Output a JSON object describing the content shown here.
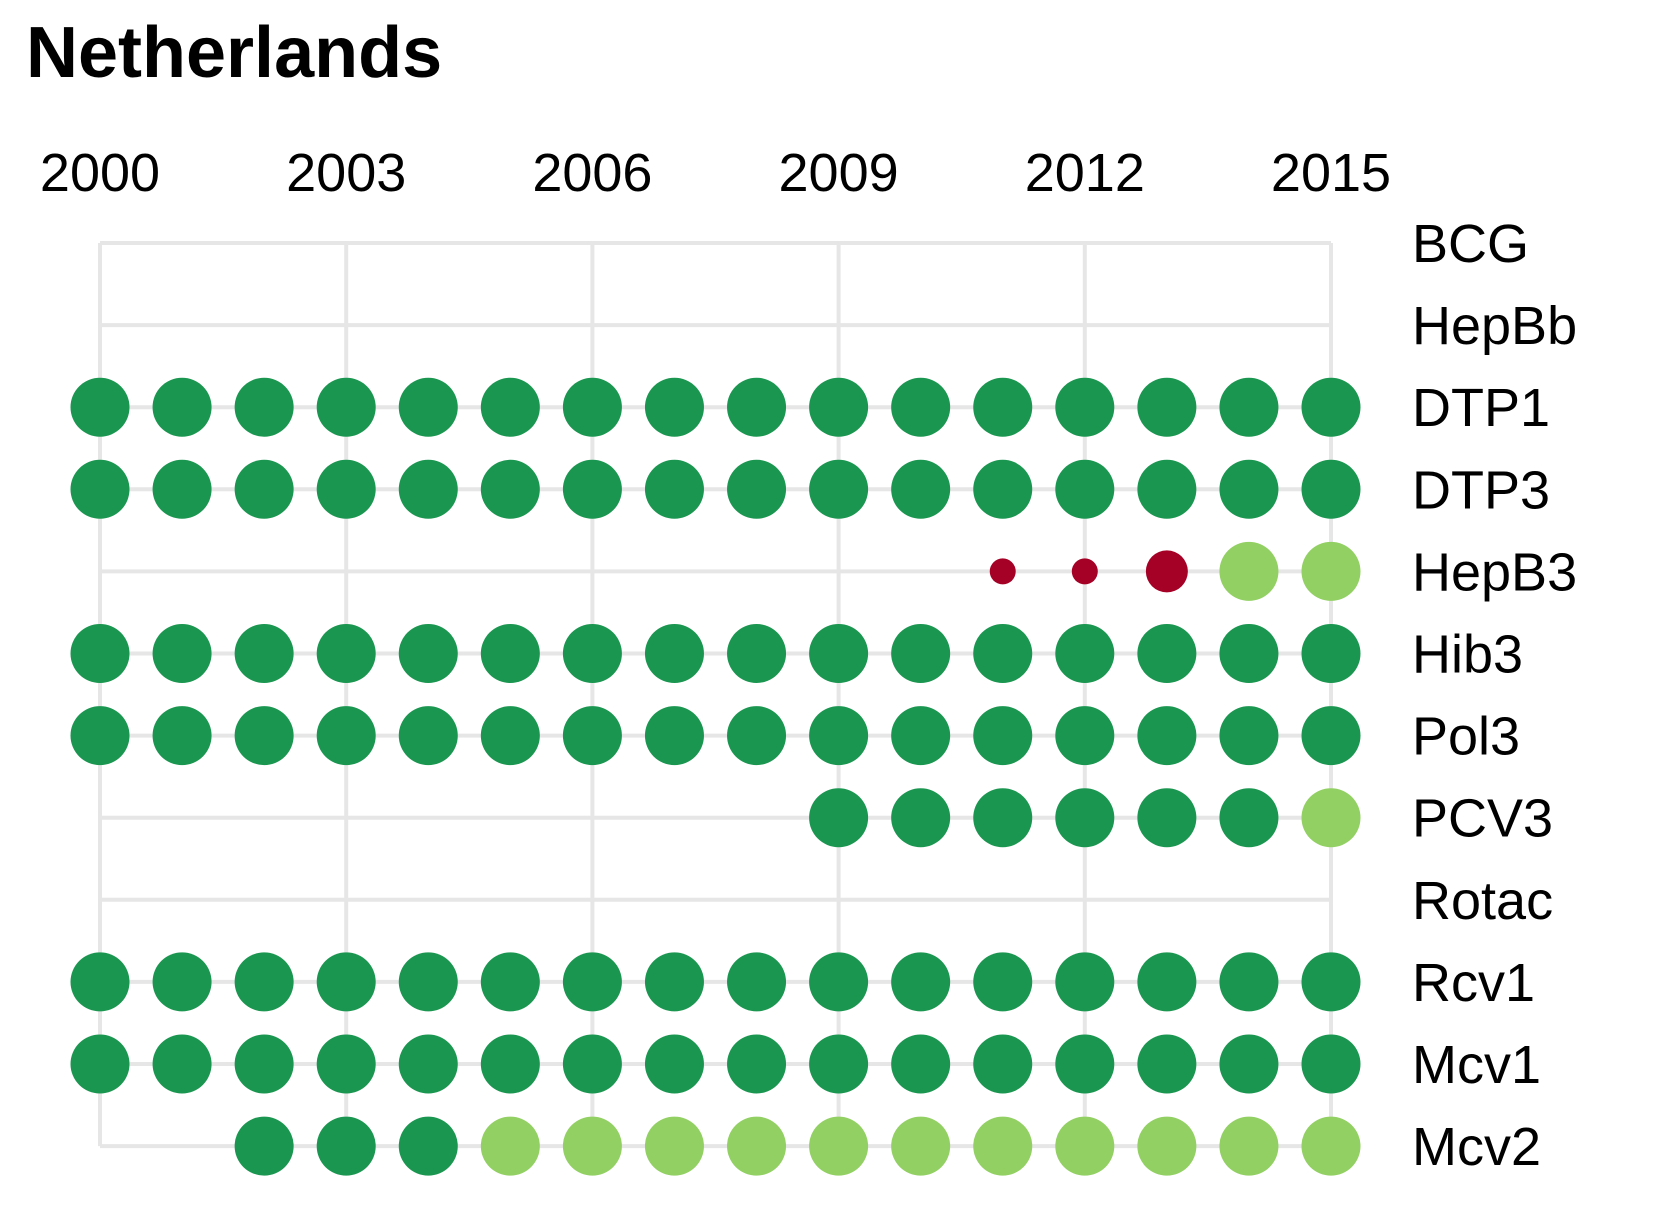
{
  "chart_data": {
    "type": "scatter",
    "title": "Netherlands",
    "xlabel": "",
    "ylabel": "",
    "x_ticks": [
      "2000",
      "2003",
      "2006",
      "2009",
      "2012",
      "2015"
    ],
    "x_range": [
      2000,
      2015
    ],
    "grid": true,
    "colors": {
      "dark_green": "#1b9650",
      "light_green": "#92d063",
      "red": "#a50026",
      "grid": "#e6e6e6"
    },
    "rows": [
      {
        "label": "BCG",
        "points": []
      },
      {
        "label": "HepBb",
        "points": []
      },
      {
        "label": "DTP1",
        "points": [
          {
            "year": 2000,
            "category": "dark_green",
            "size": "large"
          },
          {
            "year": 2001,
            "category": "dark_green",
            "size": "large"
          },
          {
            "year": 2002,
            "category": "dark_green",
            "size": "large"
          },
          {
            "year": 2003,
            "category": "dark_green",
            "size": "large"
          },
          {
            "year": 2004,
            "category": "dark_green",
            "size": "large"
          },
          {
            "year": 2005,
            "category": "dark_green",
            "size": "large"
          },
          {
            "year": 2006,
            "category": "dark_green",
            "size": "large"
          },
          {
            "year": 2007,
            "category": "dark_green",
            "size": "large"
          },
          {
            "year": 2008,
            "category": "dark_green",
            "size": "large"
          },
          {
            "year": 2009,
            "category": "dark_green",
            "size": "large"
          },
          {
            "year": 2010,
            "category": "dark_green",
            "size": "large"
          },
          {
            "year": 2011,
            "category": "dark_green",
            "size": "large"
          },
          {
            "year": 2012,
            "category": "dark_green",
            "size": "large"
          },
          {
            "year": 2013,
            "category": "dark_green",
            "size": "large"
          },
          {
            "year": 2014,
            "category": "dark_green",
            "size": "large"
          },
          {
            "year": 2015,
            "category": "dark_green",
            "size": "large"
          }
        ]
      },
      {
        "label": "DTP3",
        "points": [
          {
            "year": 2000,
            "category": "dark_green",
            "size": "large"
          },
          {
            "year": 2001,
            "category": "dark_green",
            "size": "large"
          },
          {
            "year": 2002,
            "category": "dark_green",
            "size": "large"
          },
          {
            "year": 2003,
            "category": "dark_green",
            "size": "large"
          },
          {
            "year": 2004,
            "category": "dark_green",
            "size": "large"
          },
          {
            "year": 2005,
            "category": "dark_green",
            "size": "large"
          },
          {
            "year": 2006,
            "category": "dark_green",
            "size": "large"
          },
          {
            "year": 2007,
            "category": "dark_green",
            "size": "large"
          },
          {
            "year": 2008,
            "category": "dark_green",
            "size": "large"
          },
          {
            "year": 2009,
            "category": "dark_green",
            "size": "large"
          },
          {
            "year": 2010,
            "category": "dark_green",
            "size": "large"
          },
          {
            "year": 2011,
            "category": "dark_green",
            "size": "large"
          },
          {
            "year": 2012,
            "category": "dark_green",
            "size": "large"
          },
          {
            "year": 2013,
            "category": "dark_green",
            "size": "large"
          },
          {
            "year": 2014,
            "category": "dark_green",
            "size": "large"
          },
          {
            "year": 2015,
            "category": "dark_green",
            "size": "large"
          }
        ]
      },
      {
        "label": "HepB3",
        "points": [
          {
            "year": 2011,
            "category": "red",
            "size": "small"
          },
          {
            "year": 2012,
            "category": "red",
            "size": "small"
          },
          {
            "year": 2013,
            "category": "red",
            "size": "medium"
          },
          {
            "year": 2014,
            "category": "light_green",
            "size": "large"
          },
          {
            "year": 2015,
            "category": "light_green",
            "size": "large"
          }
        ]
      },
      {
        "label": "Hib3",
        "points": [
          {
            "year": 2000,
            "category": "dark_green",
            "size": "large"
          },
          {
            "year": 2001,
            "category": "dark_green",
            "size": "large"
          },
          {
            "year": 2002,
            "category": "dark_green",
            "size": "large"
          },
          {
            "year": 2003,
            "category": "dark_green",
            "size": "large"
          },
          {
            "year": 2004,
            "category": "dark_green",
            "size": "large"
          },
          {
            "year": 2005,
            "category": "dark_green",
            "size": "large"
          },
          {
            "year": 2006,
            "category": "dark_green",
            "size": "large"
          },
          {
            "year": 2007,
            "category": "dark_green",
            "size": "large"
          },
          {
            "year": 2008,
            "category": "dark_green",
            "size": "large"
          },
          {
            "year": 2009,
            "category": "dark_green",
            "size": "large"
          },
          {
            "year": 2010,
            "category": "dark_green",
            "size": "large"
          },
          {
            "year": 2011,
            "category": "dark_green",
            "size": "large"
          },
          {
            "year": 2012,
            "category": "dark_green",
            "size": "large"
          },
          {
            "year": 2013,
            "category": "dark_green",
            "size": "large"
          },
          {
            "year": 2014,
            "category": "dark_green",
            "size": "large"
          },
          {
            "year": 2015,
            "category": "dark_green",
            "size": "large"
          }
        ]
      },
      {
        "label": "Pol3",
        "points": [
          {
            "year": 2000,
            "category": "dark_green",
            "size": "large"
          },
          {
            "year": 2001,
            "category": "dark_green",
            "size": "large"
          },
          {
            "year": 2002,
            "category": "dark_green",
            "size": "large"
          },
          {
            "year": 2003,
            "category": "dark_green",
            "size": "large"
          },
          {
            "year": 2004,
            "category": "dark_green",
            "size": "large"
          },
          {
            "year": 2005,
            "category": "dark_green",
            "size": "large"
          },
          {
            "year": 2006,
            "category": "dark_green",
            "size": "large"
          },
          {
            "year": 2007,
            "category": "dark_green",
            "size": "large"
          },
          {
            "year": 2008,
            "category": "dark_green",
            "size": "large"
          },
          {
            "year": 2009,
            "category": "dark_green",
            "size": "large"
          },
          {
            "year": 2010,
            "category": "dark_green",
            "size": "large"
          },
          {
            "year": 2011,
            "category": "dark_green",
            "size": "large"
          },
          {
            "year": 2012,
            "category": "dark_green",
            "size": "large"
          },
          {
            "year": 2013,
            "category": "dark_green",
            "size": "large"
          },
          {
            "year": 2014,
            "category": "dark_green",
            "size": "large"
          },
          {
            "year": 2015,
            "category": "dark_green",
            "size": "large"
          }
        ]
      },
      {
        "label": "PCV3",
        "points": [
          {
            "year": 2009,
            "category": "dark_green",
            "size": "large"
          },
          {
            "year": 2010,
            "category": "dark_green",
            "size": "large"
          },
          {
            "year": 2011,
            "category": "dark_green",
            "size": "large"
          },
          {
            "year": 2012,
            "category": "dark_green",
            "size": "large"
          },
          {
            "year": 2013,
            "category": "dark_green",
            "size": "large"
          },
          {
            "year": 2014,
            "category": "dark_green",
            "size": "large"
          },
          {
            "year": 2015,
            "category": "light_green",
            "size": "large"
          }
        ]
      },
      {
        "label": "Rotac",
        "points": []
      },
      {
        "label": "Rcv1",
        "points": [
          {
            "year": 2000,
            "category": "dark_green",
            "size": "large"
          },
          {
            "year": 2001,
            "category": "dark_green",
            "size": "large"
          },
          {
            "year": 2002,
            "category": "dark_green",
            "size": "large"
          },
          {
            "year": 2003,
            "category": "dark_green",
            "size": "large"
          },
          {
            "year": 2004,
            "category": "dark_green",
            "size": "large"
          },
          {
            "year": 2005,
            "category": "dark_green",
            "size": "large"
          },
          {
            "year": 2006,
            "category": "dark_green",
            "size": "large"
          },
          {
            "year": 2007,
            "category": "dark_green",
            "size": "large"
          },
          {
            "year": 2008,
            "category": "dark_green",
            "size": "large"
          },
          {
            "year": 2009,
            "category": "dark_green",
            "size": "large"
          },
          {
            "year": 2010,
            "category": "dark_green",
            "size": "large"
          },
          {
            "year": 2011,
            "category": "dark_green",
            "size": "large"
          },
          {
            "year": 2012,
            "category": "dark_green",
            "size": "large"
          },
          {
            "year": 2013,
            "category": "dark_green",
            "size": "large"
          },
          {
            "year": 2014,
            "category": "dark_green",
            "size": "large"
          },
          {
            "year": 2015,
            "category": "dark_green",
            "size": "large"
          }
        ]
      },
      {
        "label": "Mcv1",
        "points": [
          {
            "year": 2000,
            "category": "dark_green",
            "size": "large"
          },
          {
            "year": 2001,
            "category": "dark_green",
            "size": "large"
          },
          {
            "year": 2002,
            "category": "dark_green",
            "size": "large"
          },
          {
            "year": 2003,
            "category": "dark_green",
            "size": "large"
          },
          {
            "year": 2004,
            "category": "dark_green",
            "size": "large"
          },
          {
            "year": 2005,
            "category": "dark_green",
            "size": "large"
          },
          {
            "year": 2006,
            "category": "dark_green",
            "size": "large"
          },
          {
            "year": 2007,
            "category": "dark_green",
            "size": "large"
          },
          {
            "year": 2008,
            "category": "dark_green",
            "size": "large"
          },
          {
            "year": 2009,
            "category": "dark_green",
            "size": "large"
          },
          {
            "year": 2010,
            "category": "dark_green",
            "size": "large"
          },
          {
            "year": 2011,
            "category": "dark_green",
            "size": "large"
          },
          {
            "year": 2012,
            "category": "dark_green",
            "size": "large"
          },
          {
            "year": 2013,
            "category": "dark_green",
            "size": "large"
          },
          {
            "year": 2014,
            "category": "dark_green",
            "size": "large"
          },
          {
            "year": 2015,
            "category": "dark_green",
            "size": "large"
          }
        ]
      },
      {
        "label": "Mcv2",
        "points": [
          {
            "year": 2002,
            "category": "dark_green",
            "size": "large"
          },
          {
            "year": 2003,
            "category": "dark_green",
            "size": "large"
          },
          {
            "year": 2004,
            "category": "dark_green",
            "size": "large"
          },
          {
            "year": 2005,
            "category": "light_green",
            "size": "large"
          },
          {
            "year": 2006,
            "category": "light_green",
            "size": "large"
          },
          {
            "year": 2007,
            "category": "light_green",
            "size": "large"
          },
          {
            "year": 2008,
            "category": "light_green",
            "size": "large"
          },
          {
            "year": 2009,
            "category": "light_green",
            "size": "large"
          },
          {
            "year": 2010,
            "category": "light_green",
            "size": "large"
          },
          {
            "year": 2011,
            "category": "light_green",
            "size": "large"
          },
          {
            "year": 2012,
            "category": "light_green",
            "size": "large"
          },
          {
            "year": 2013,
            "category": "light_green",
            "size": "large"
          },
          {
            "year": 2014,
            "category": "light_green",
            "size": "large"
          },
          {
            "year": 2015,
            "category": "light_green",
            "size": "large"
          }
        ]
      }
    ]
  }
}
